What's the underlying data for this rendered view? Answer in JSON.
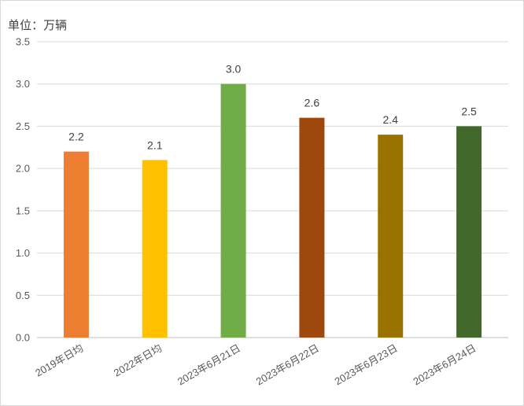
{
  "chart_data": {
    "type": "bar",
    "unit_label": "单位：万辆",
    "categories": [
      "2019年日均",
      "2022年日均",
      "2023年6月21日",
      "2023年6月22日",
      "2023年6月23日",
      "2023年6月24日"
    ],
    "values": [
      2.2,
      2.1,
      3.0,
      2.6,
      2.4,
      2.5
    ],
    "data_labels": [
      "2.2",
      "2.1",
      "3.0",
      "2.6",
      "2.4",
      "2.5"
    ],
    "colors": [
      "#ed7d31",
      "#ffc000",
      "#70ad47",
      "#9e480e",
      "#997300",
      "#43682b"
    ],
    "ylim": [
      0,
      3.5
    ],
    "yticks": [
      "0.0",
      "0.5",
      "1.0",
      "1.5",
      "2.0",
      "2.5",
      "3.0",
      "3.5"
    ],
    "grid": true,
    "legend": false
  }
}
